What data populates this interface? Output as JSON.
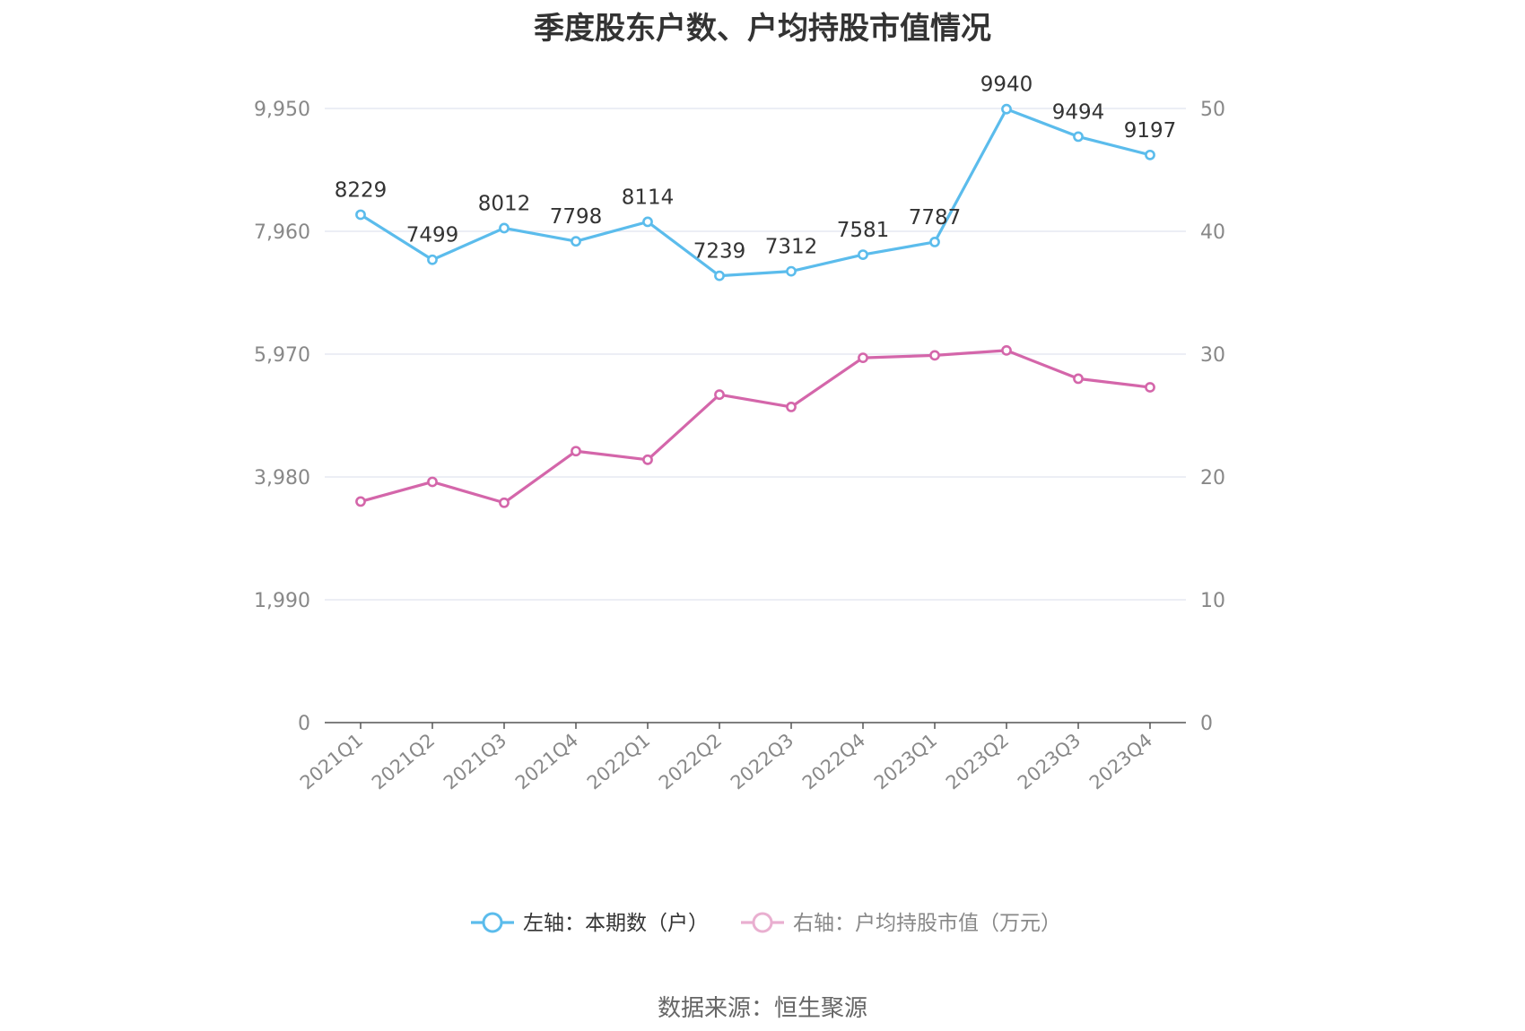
{
  "title": "季度股东户数、户均持股市值情况",
  "source": "数据来源：恒生聚源",
  "colors": {
    "series1": "#5bbcec",
    "series2": "#d466aa",
    "grid": "#e0e4ef",
    "axis": "#555555",
    "legend2": "#e9afd0"
  },
  "chart_data": {
    "type": "line",
    "categories": [
      "2021Q1",
      "2021Q2",
      "2021Q3",
      "2021Q4",
      "2022Q1",
      "2022Q2",
      "2022Q3",
      "2022Q4",
      "2023Q1",
      "2023Q2",
      "2023Q3",
      "2023Q4"
    ],
    "y_left": {
      "min": 0,
      "max": 9950,
      "ticks": [
        "0",
        "1,990",
        "3,980",
        "5,970",
        "7,960",
        "9,950"
      ]
    },
    "y_right": {
      "min": 0,
      "max": 50,
      "ticks": [
        "0",
        "10",
        "20",
        "30",
        "40",
        "50"
      ]
    },
    "grid": true,
    "legend_position": "bottom",
    "series": [
      {
        "name": "左轴：本期数（户）",
        "axis": "left",
        "values": [
          8229,
          7499,
          8012,
          7798,
          8114,
          7239,
          7312,
          7581,
          7787,
          9940,
          9494,
          9197
        ],
        "labels": [
          "8229",
          "7499",
          "8012",
          "7798",
          "8114",
          "7239",
          "7312",
          "7581",
          "7787",
          "9940",
          "9494",
          "9197"
        ]
      },
      {
        "name": "右轴：户均持股市值（万元）",
        "axis": "right",
        "values": [
          18.0,
          19.6,
          17.9,
          22.1,
          21.4,
          26.7,
          25.7,
          29.7,
          29.9,
          30.3,
          28.0,
          27.3
        ]
      }
    ]
  }
}
